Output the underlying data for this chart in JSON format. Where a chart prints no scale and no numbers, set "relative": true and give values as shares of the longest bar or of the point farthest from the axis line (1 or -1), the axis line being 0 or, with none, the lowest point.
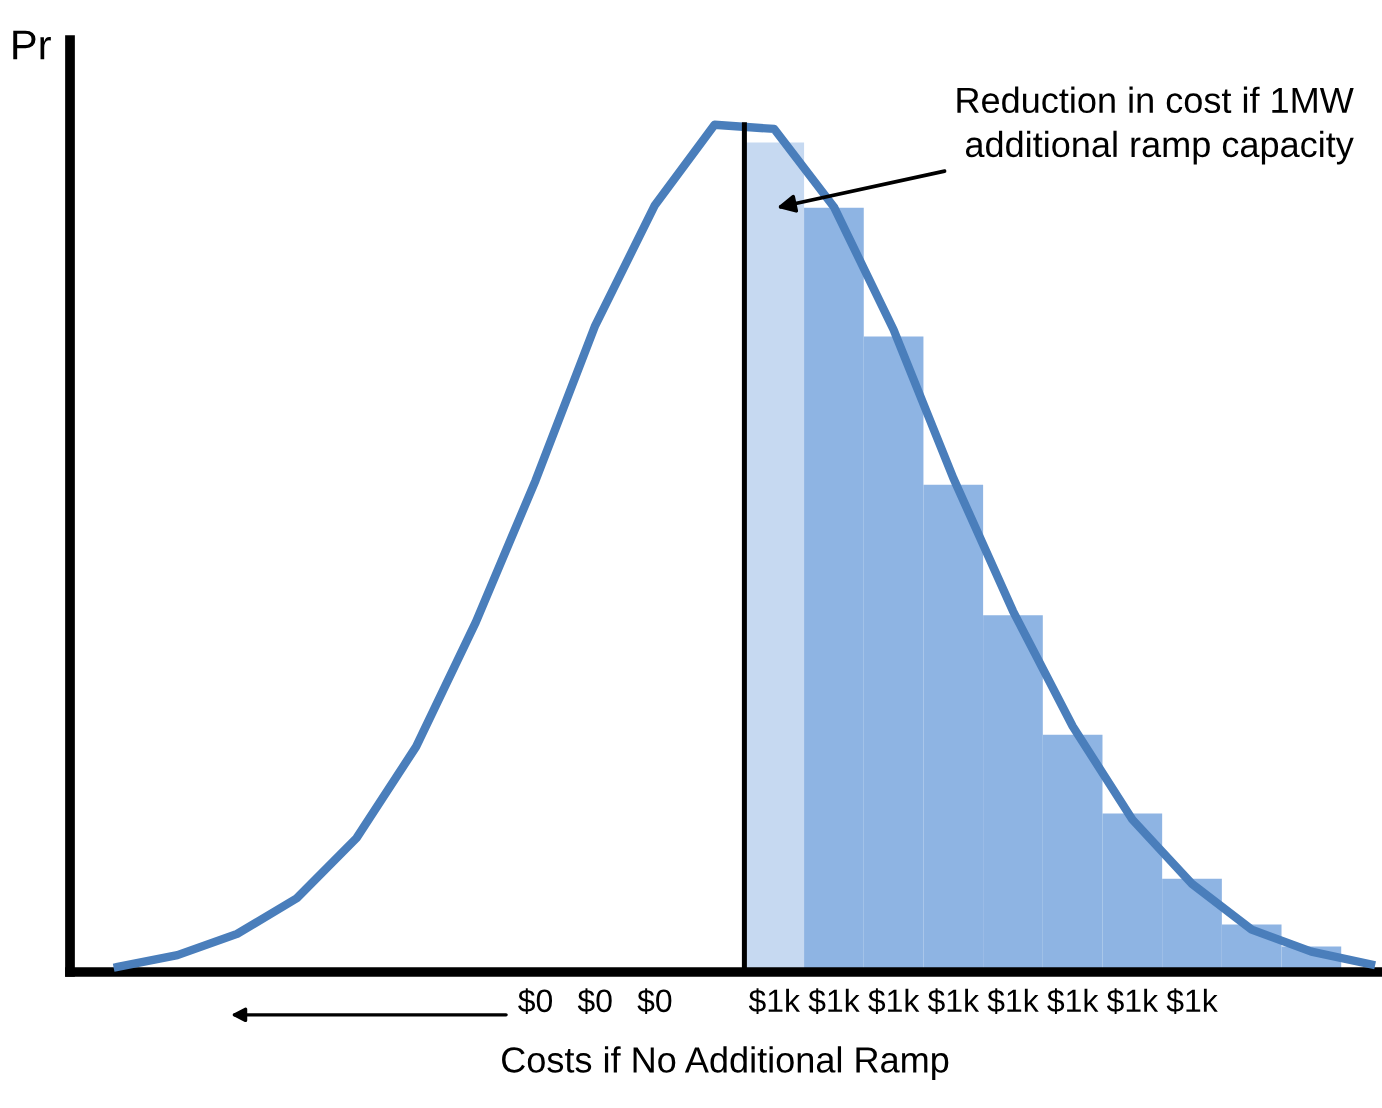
{
  "chart_data": {
    "type": "line",
    "relative": true,
    "xlabel": "Costs if No Additional Ramp",
    "ylabel": "Pr",
    "categories": [
      null,
      null,
      null,
      null,
      null,
      null,
      null,
      "$0",
      "$0",
      "$0",
      null,
      "$1k",
      "$1k",
      "$1k",
      "$1k",
      "$1k",
      "$1k",
      "$1k",
      "$1k",
      null,
      null,
      null
    ],
    "series": [
      {
        "color": "#4a7ebb",
        "values": [
          0.006,
          0.02,
          0.045,
          0.087,
          0.158,
          0.266,
          0.413,
          0.58,
          0.763,
          0.905,
          1,
          0.995,
          0.903,
          0.758,
          0.583,
          0.426,
          0.29,
          0.18,
          0.104,
          0.05,
          0.024,
          0.009
        ]
      },
      {
        "type": "bar",
        "colors": [
          null,
          null,
          null,
          null,
          null,
          null,
          null,
          null,
          null,
          null,
          null,
          "#c6d9f1",
          "#8eb4e3",
          "#8eb4e3",
          "#8eb4e3",
          "#8eb4e3",
          "#8eb4e3",
          "#8eb4e3",
          "#8eb4e3",
          "#8eb4e3",
          "#8eb4e3",
          null
        ],
        "values": [
          null,
          null,
          null,
          null,
          null,
          null,
          null,
          null,
          null,
          null,
          null,
          0.979,
          0.902,
          0.75,
          0.575,
          0.421,
          0.28,
          0.187,
          0.11,
          0.056,
          0.03,
          null
        ]
      }
    ],
    "annotations": [
      "Reduction in cost if 1MW\nadditional ramp capacity"
    ],
    "grid": false,
    "legend": false,
    "marker": "none",
    "line_style": "solid"
  }
}
